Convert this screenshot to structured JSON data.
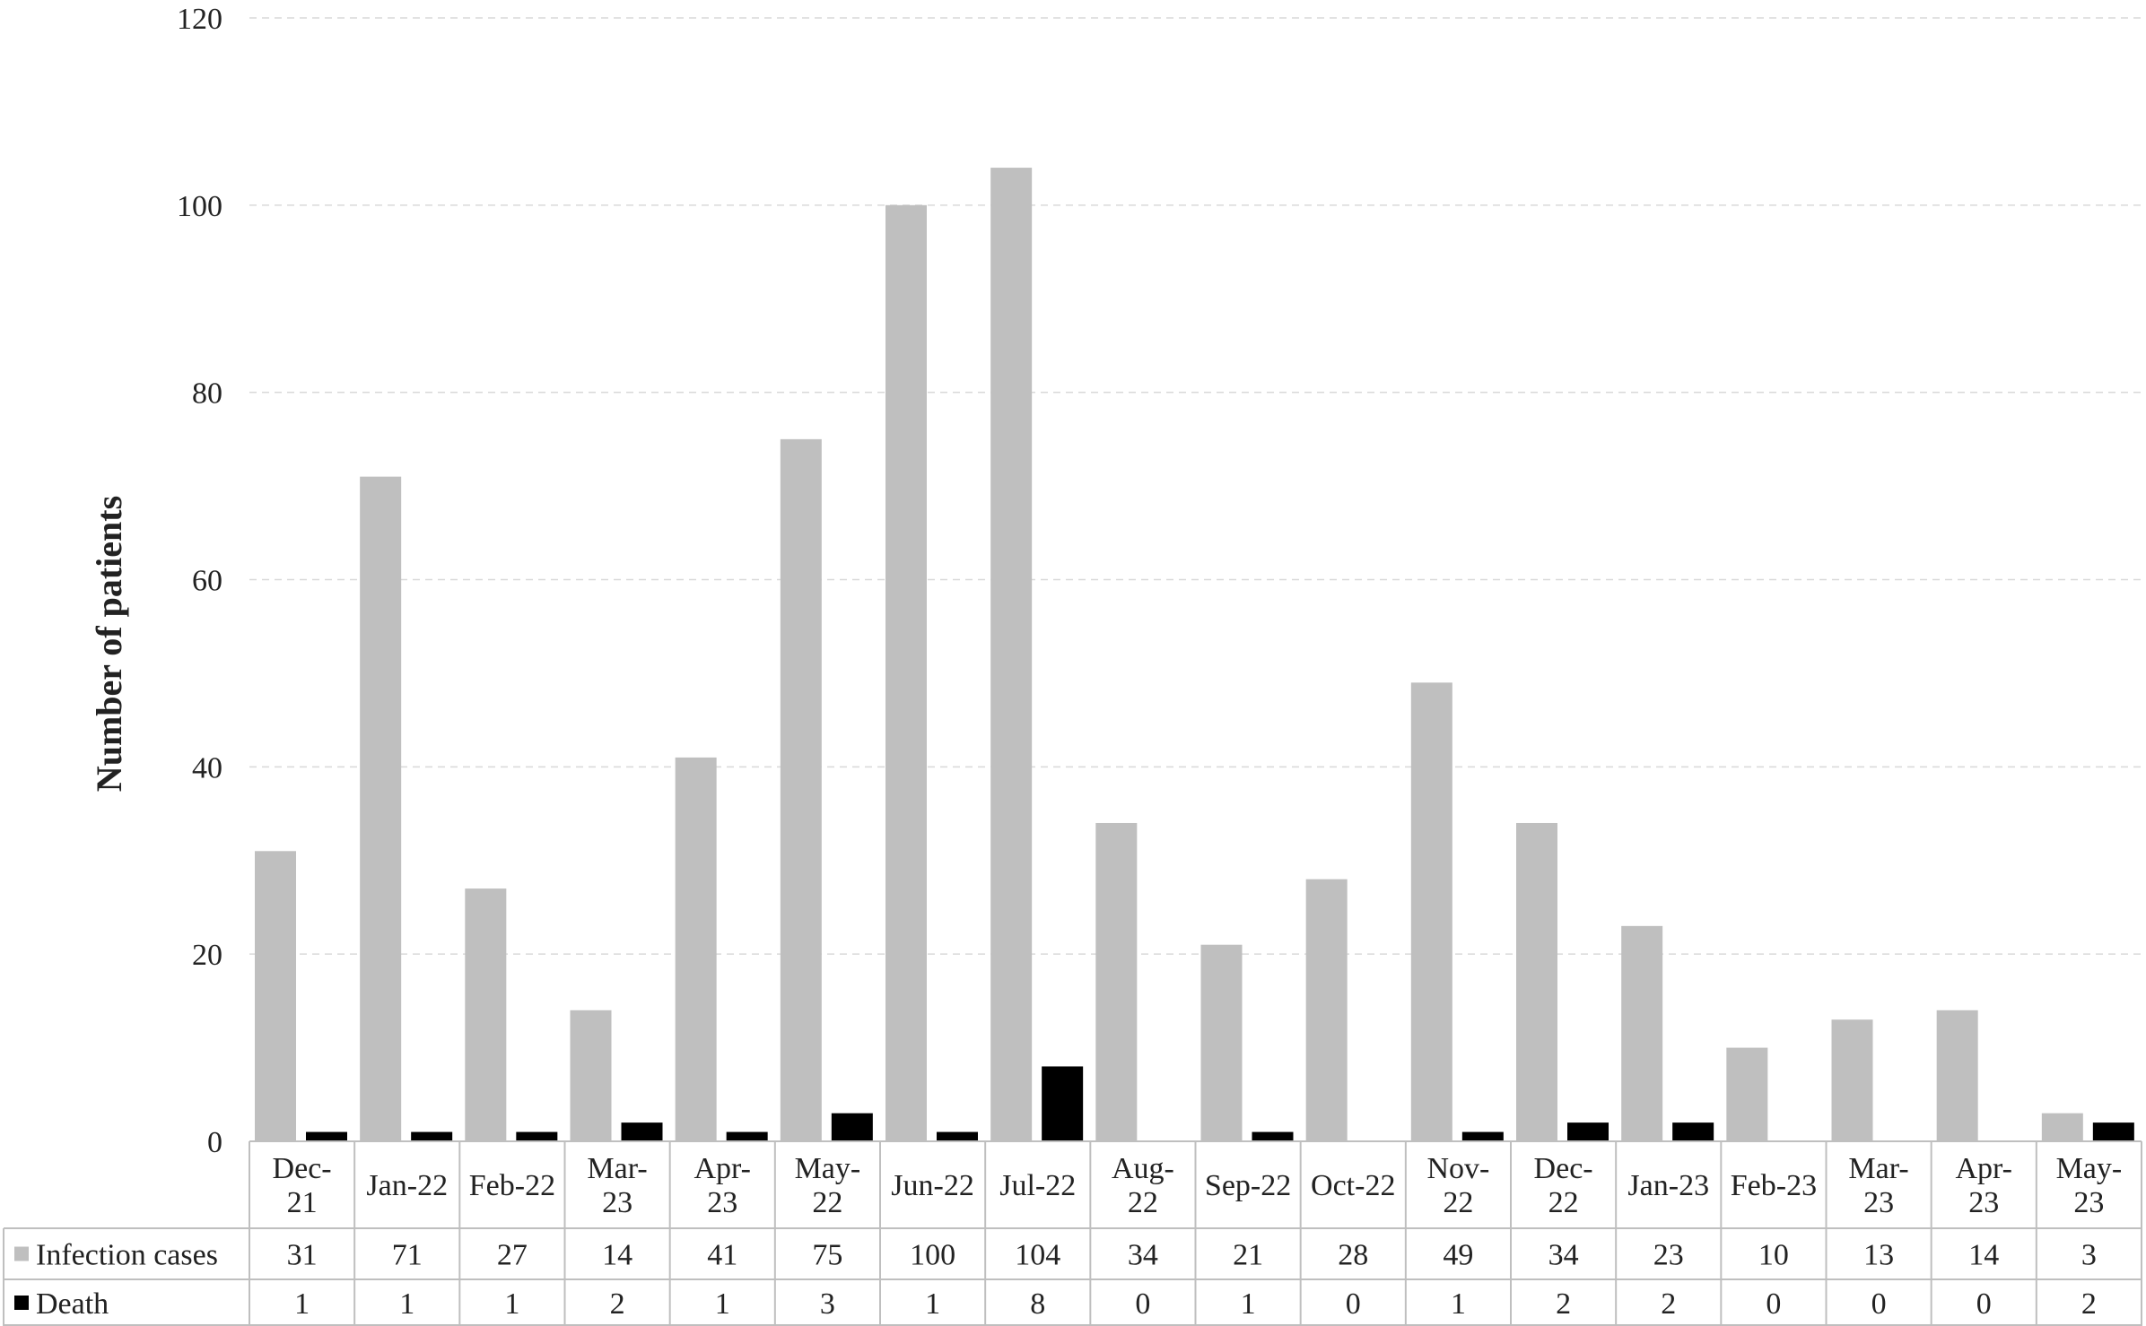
{
  "chart_data": {
    "type": "bar",
    "ylabel": "Number of patients",
    "ylim": [
      0,
      120
    ],
    "yticks": [
      0,
      20,
      40,
      60,
      80,
      100,
      120
    ],
    "grid": "horizontal-dashed",
    "legend": "data-table-rows",
    "categories": [
      [
        "Dec-",
        "21"
      ],
      [
        "Jan-22"
      ],
      [
        "Feb-22"
      ],
      [
        "Mar-",
        "23"
      ],
      [
        "Apr-",
        "23"
      ],
      [
        "May-",
        "22"
      ],
      [
        "Jun-22"
      ],
      [
        "Jul-22"
      ],
      [
        "Aug-",
        "22"
      ],
      [
        "Sep-22"
      ],
      [
        "Oct-22"
      ],
      [
        "Nov-",
        "22"
      ],
      [
        "Dec-",
        "22"
      ],
      [
        "Jan-23"
      ],
      [
        "Feb-23"
      ],
      [
        "Mar-",
        "23"
      ],
      [
        "Apr-",
        "23"
      ],
      [
        "May-",
        "23"
      ]
    ],
    "series": [
      {
        "name": "Infection cases",
        "color": "#bfbfbf",
        "values": [
          31,
          71,
          27,
          14,
          41,
          75,
          100,
          104,
          34,
          21,
          28,
          49,
          34,
          23,
          10,
          13,
          14,
          3
        ]
      },
      {
        "name": "Death",
        "color": "#000000",
        "values": [
          1,
          1,
          1,
          2,
          1,
          3,
          1,
          8,
          0,
          1,
          0,
          1,
          2,
          2,
          0,
          0,
          0,
          2
        ]
      }
    ]
  }
}
